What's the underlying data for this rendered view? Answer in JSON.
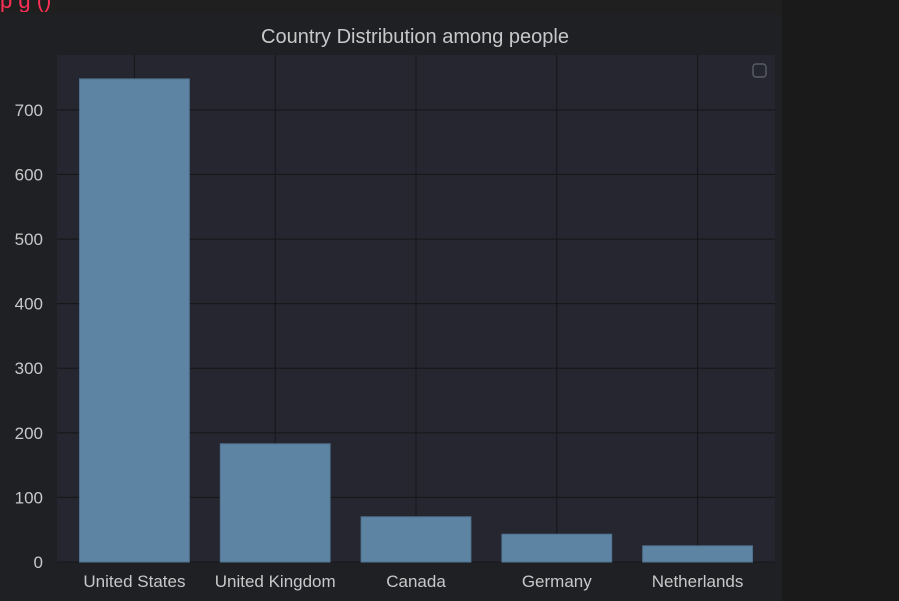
{
  "header": {
    "cut_off_text": "p    g    ()"
  },
  "chart_data": {
    "type": "bar",
    "title": "Country Distribution among people",
    "categories": [
      "United States",
      "United Kingdom",
      "Canada",
      "Germany",
      "Netherlands"
    ],
    "values": [
      748,
      183,
      70,
      43,
      25
    ],
    "xlabel": "",
    "ylabel": "",
    "ylim": [
      0,
      785
    ],
    "yticks": [
      0,
      100,
      200,
      300,
      400,
      500,
      600,
      700
    ],
    "grid": true,
    "legend": "top-right (empty)",
    "colors": {
      "bar": "#5e84a3",
      "bar_edge": "#4f7390",
      "plot_bg": "#25262f",
      "figure_bg": "#1f2024",
      "grid": "#161619",
      "text": "#c8c8c8"
    }
  }
}
